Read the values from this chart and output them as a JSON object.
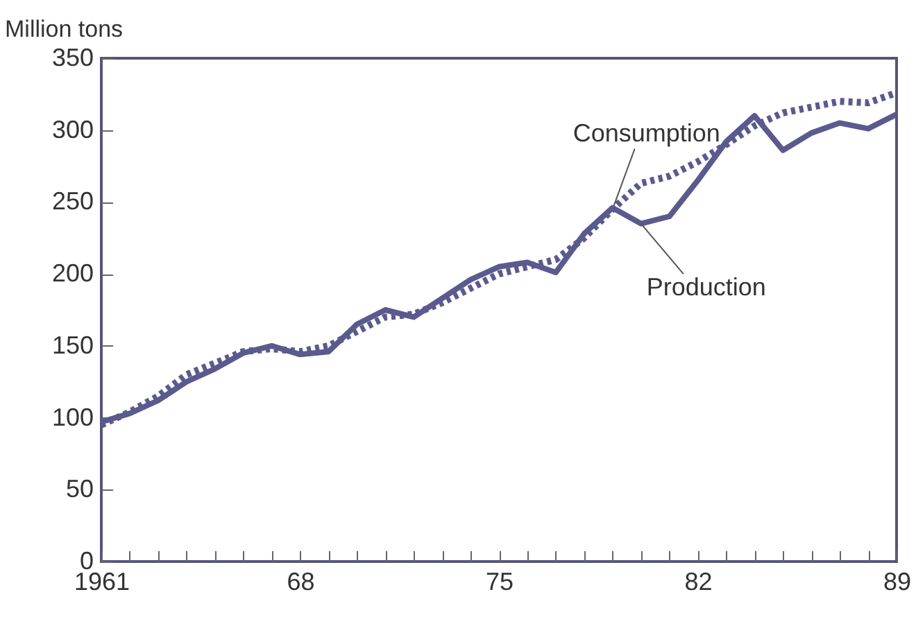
{
  "chart_data": {
    "type": "line",
    "ylabel": "Million tons",
    "x": [
      1961,
      1962,
      1963,
      1964,
      1965,
      1966,
      1967,
      1968,
      1969,
      1970,
      1971,
      1972,
      1973,
      1974,
      1975,
      1976,
      1977,
      1978,
      1979,
      1980,
      1981,
      1982,
      1983,
      1984,
      1985,
      1986,
      1987,
      1988,
      1989
    ],
    "series": [
      {
        "name": "Consumption",
        "color": "#5b5a8e",
        "line_style": "dotted",
        "values": [
          95,
          104,
          115,
          130,
          138,
          146,
          148,
          146,
          150,
          160,
          170,
          172,
          180,
          190,
          200,
          205,
          210,
          225,
          245,
          263,
          268,
          278,
          290,
          303,
          312,
          316,
          320,
          319,
          326
        ]
      },
      {
        "name": "Production",
        "color": "#5b5a8e",
        "line_style": "solid",
        "values": [
          97,
          103,
          112,
          125,
          134,
          145,
          150,
          144,
          146,
          165,
          175,
          170,
          183,
          196,
          205,
          208,
          201,
          228,
          246,
          235,
          240,
          265,
          292,
          310,
          286,
          298,
          305,
          301,
          311
        ]
      }
    ],
    "xlim": [
      1961,
      1989
    ],
    "ylim": [
      0,
      350
    ],
    "xticks": [
      {
        "value": 1961,
        "label": "1961"
      },
      {
        "value": 1962,
        "label": null
      },
      {
        "value": 1963,
        "label": null
      },
      {
        "value": 1964,
        "label": null
      },
      {
        "value": 1965,
        "label": null
      },
      {
        "value": 1966,
        "label": null
      },
      {
        "value": 1967,
        "label": null
      },
      {
        "value": 1968,
        "label": "68"
      },
      {
        "value": 1969,
        "label": null
      },
      {
        "value": 1970,
        "label": null
      },
      {
        "value": 1971,
        "label": null
      },
      {
        "value": 1972,
        "label": null
      },
      {
        "value": 1973,
        "label": null
      },
      {
        "value": 1974,
        "label": null
      },
      {
        "value": 1975,
        "label": "75"
      },
      {
        "value": 1976,
        "label": null
      },
      {
        "value": 1977,
        "label": null
      },
      {
        "value": 1978,
        "label": null
      },
      {
        "value": 1979,
        "label": null
      },
      {
        "value": 1980,
        "label": null
      },
      {
        "value": 1981,
        "label": null
      },
      {
        "value": 1982,
        "label": "82"
      },
      {
        "value": 1983,
        "label": null
      },
      {
        "value": 1984,
        "label": null
      },
      {
        "value": 1985,
        "label": null
      },
      {
        "value": 1986,
        "label": null
      },
      {
        "value": 1987,
        "label": null
      },
      {
        "value": 1988,
        "label": null
      },
      {
        "value": 1989,
        "label": "89"
      }
    ],
    "yticks": [
      0,
      50,
      100,
      150,
      200,
      250,
      300,
      350
    ]
  }
}
